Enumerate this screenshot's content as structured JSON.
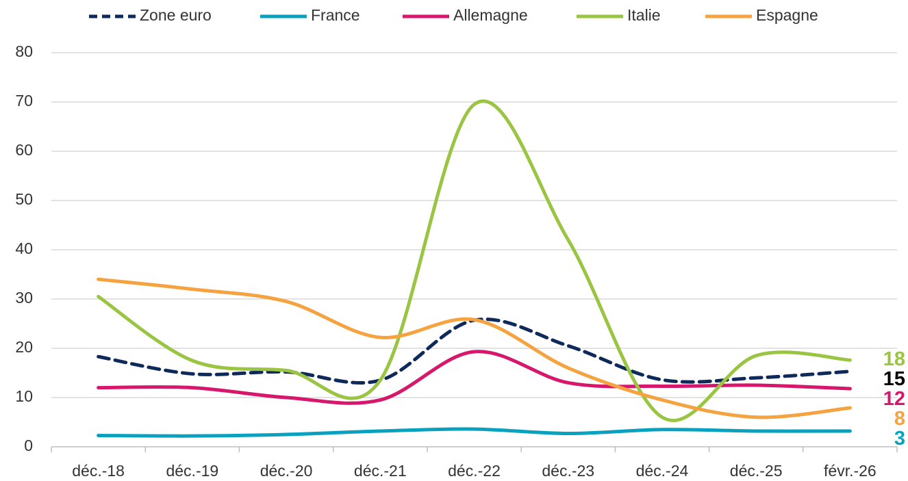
{
  "chart_data": {
    "type": "line",
    "categories": [
      "déc.-18",
      "déc.-19",
      "déc.-20",
      "déc.-21",
      "déc.-22",
      "déc.-23",
      "déc.-24",
      "déc.-25",
      "févr.-26"
    ],
    "series": [
      {
        "name": "Zone euro",
        "color": "#0e2a5a",
        "dashed": true,
        "values": [
          18.3,
          14.8,
          15.2,
          13.5,
          25.7,
          20.5,
          13.6,
          14,
          15.3
        ],
        "value_labels": [
          null,
          null,
          null,
          null,
          null,
          null,
          null,
          null,
          "15"
        ]
      },
      {
        "name": "France",
        "color": "#0aa1bf",
        "values": [
          2.3,
          2.2,
          2.5,
          3.2,
          3.6,
          2.7,
          3.5,
          3.2,
          3.2
        ],
        "value_labels": [
          null,
          null,
          null,
          null,
          null,
          null,
          null,
          null,
          "3"
        ]
      },
      {
        "name": "Allemagne",
        "color": "#d6176b",
        "values": [
          12,
          12,
          10,
          9.5,
          19.3,
          13,
          12.3,
          12.5,
          11.8
        ],
        "value_labels": [
          null,
          null,
          null,
          null,
          null,
          null,
          null,
          null,
          "12"
        ]
      },
      {
        "name": "Italie",
        "color": "#9ac543",
        "values": [
          30.5,
          17.5,
          15.5,
          13.5,
          69.5,
          42,
          6,
          18.5,
          17.6
        ],
        "value_labels": [
          null,
          null,
          null,
          null,
          null,
          null,
          null,
          null,
          "18"
        ]
      },
      {
        "name": "Espagne",
        "color": "#f4a340",
        "values": [
          34,
          32,
          29.5,
          22.2,
          25.8,
          16,
          9.5,
          6,
          7.9
        ],
        "value_labels": [
          null,
          null,
          null,
          null,
          null,
          null,
          null,
          null,
          "8"
        ]
      }
    ],
    "ylim": [
      0,
      80
    ],
    "yticks": [
      0,
      10,
      20,
      30,
      40,
      50,
      60,
      70,
      80
    ],
    "grid": true,
    "legend": "top",
    "smooth": true
  }
}
